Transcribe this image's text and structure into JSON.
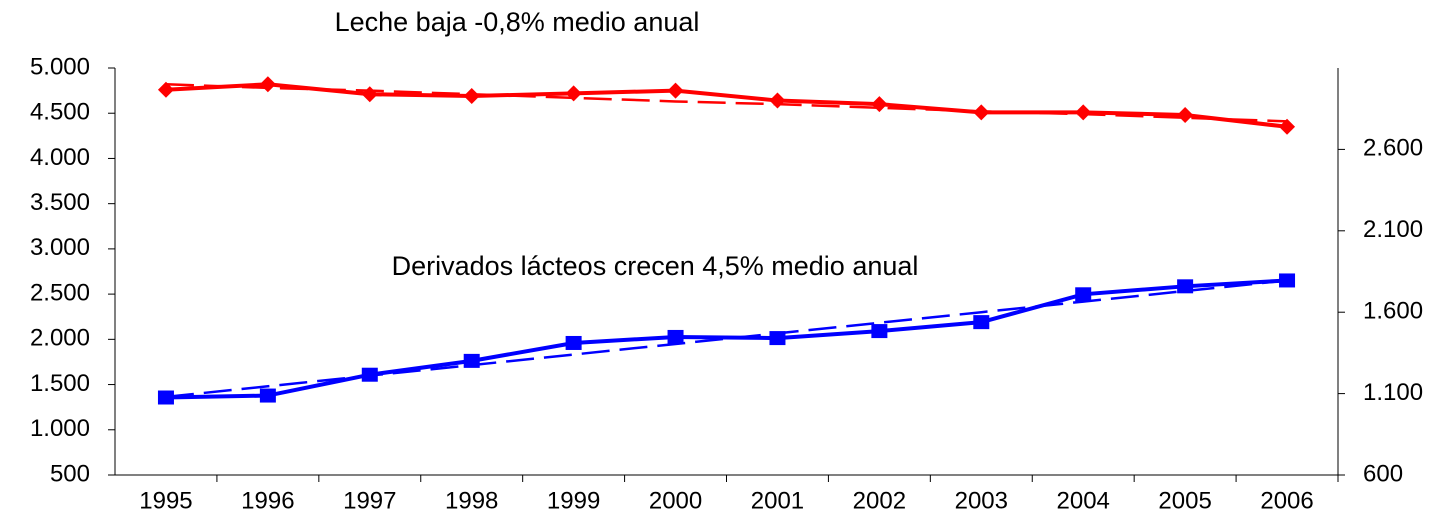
{
  "chart_data": {
    "type": "line",
    "annotations": [
      {
        "text": "Leche  baja -0,8% medio anual",
        "color": "#ff0000"
      },
      {
        "text": "Derivados lácteos crecen 4,5% medio anual",
        "color": "#0000ff"
      }
    ],
    "categories": [
      "1995",
      "1996",
      "1997",
      "1998",
      "1999",
      "2000",
      "2001",
      "2002",
      "2003",
      "2004",
      "2005",
      "2006"
    ],
    "series": [
      {
        "color": "#ff0000",
        "marker": "diamond",
        "axis": "y",
        "values": [
          4760,
          4820,
          4710,
          4690,
          4720,
          4750,
          4640,
          4600,
          4510,
          4510,
          4480,
          4350
        ]
      },
      {
        "color": "#ff0000",
        "dashed": true,
        "axis": "y",
        "values": [
          4820,
          4780,
          4750,
          4710,
          4670,
          4630,
          4600,
          4560,
          4520,
          4490,
          4450,
          4410
        ]
      },
      {
        "color": "#0000ff",
        "marker": "square",
        "axis": "y2",
        "values": [
          1076,
          1088,
          1216,
          1301,
          1411,
          1448,
          1441,
          1484,
          1539,
          1710,
          1759,
          1795
        ]
      },
      {
        "color": "#0000ff",
        "dashed": true,
        "axis": "y2",
        "values": [
          1080,
          1145,
          1210,
          1275,
          1340,
          1405,
          1470,
          1535,
          1600,
          1665,
          1730,
          1795
        ]
      }
    ],
    "ylim": [
      500,
      5000
    ],
    "yticks": [
      500,
      {
        "value": 1000,
        "label": "1.000"
      },
      {
        "value": 1500,
        "label": "1.500"
      },
      {
        "value": 2000,
        "label": "2.000"
      },
      {
        "value": 2500,
        "label": "2.500"
      },
      {
        "value": 3000,
        "label": "3.000"
      },
      {
        "value": 3500,
        "label": "3.500"
      },
      {
        "value": 4000,
        "label": "4.000"
      },
      {
        "value": 4500,
        "label": "4.500"
      },
      {
        "value": 5000,
        "label": "5.000"
      }
    ],
    "y2lim": [
      600,
      3100
    ],
    "y2ticks": [
      600,
      {
        "value": 1100,
        "label": "1.100"
      },
      {
        "value": 1600,
        "label": "1.600"
      },
      {
        "value": 2100,
        "label": "2.100"
      },
      {
        "value": 2600,
        "label": "2.600"
      }
    ],
    "grid": false
  }
}
